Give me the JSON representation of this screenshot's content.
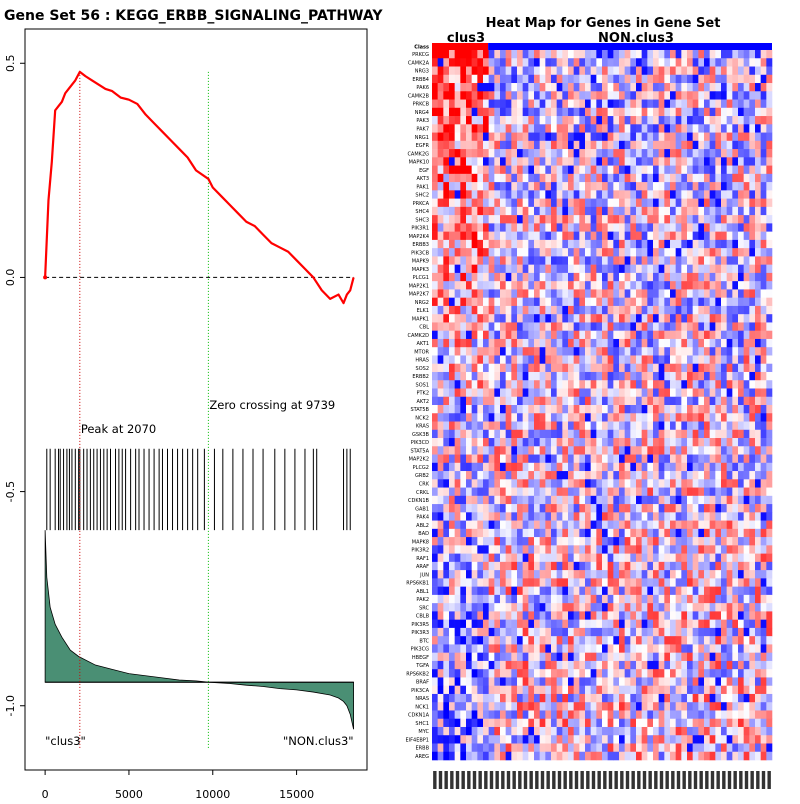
{
  "chart_data": [
    {
      "type": "line",
      "title": "Gene Set  56 : KEGG_ERBB_SIGNALING_PATHWAY",
      "xlabel": "",
      "ylabel": "",
      "xlim": [
        -1200,
        19200
      ],
      "ylim": [
        -1.15,
        0.58
      ],
      "x_ticks": [
        0,
        5000,
        10000,
        15000
      ],
      "x_tick_labels": [
        "0",
        "5000",
        "10000",
        "15000"
      ],
      "y_ticks": [
        0.5,
        0.0,
        -0.5,
        -1.0
      ],
      "y_tick_labels": [
        "0.5",
        "0.0",
        "-0.5",
        "-1.0"
      ],
      "series": [
        {
          "role": "running-enrichment-score",
          "color": "#ff0000",
          "x": [
            0,
            200,
            400,
            600,
            800,
            1000,
            1200,
            1400,
            1600,
            1800,
            2070,
            2400,
            2800,
            3200,
            3600,
            4000,
            4500,
            5000,
            5500,
            6000,
            6500,
            7000,
            7500,
            8000,
            8500,
            9000,
            9739,
            10000,
            10500,
            11000,
            11500,
            12000,
            12500,
            13000,
            13500,
            14000,
            14500,
            15000,
            15500,
            16000,
            16500,
            17000,
            17500,
            17800,
            18000,
            18200,
            18400
          ],
          "y": [
            0.0,
            0.18,
            0.27,
            0.39,
            0.4,
            0.41,
            0.43,
            0.44,
            0.45,
            0.46,
            0.48,
            0.47,
            0.46,
            0.45,
            0.44,
            0.435,
            0.42,
            0.415,
            0.405,
            0.38,
            0.36,
            0.34,
            0.32,
            0.3,
            0.28,
            0.25,
            0.23,
            0.21,
            0.19,
            0.17,
            0.15,
            0.13,
            0.12,
            0.1,
            0.08,
            0.07,
            0.06,
            0.04,
            0.02,
            0.0,
            -0.03,
            -0.05,
            -0.04,
            -0.06,
            -0.04,
            -0.03,
            0.0
          ]
        }
      ],
      "zero_line": 0.0,
      "peak": {
        "x": 2070,
        "label": "Peak at 2070",
        "line_color": "#cc0000"
      },
      "zero_crossing": {
        "x": 9739,
        "label": "Zero crossing at 9739",
        "line_color": "#00bb00"
      },
      "hits": {
        "x": [
          100,
          300,
          600,
          800,
          900,
          1100,
          1300,
          1450,
          1600,
          1800,
          2000,
          2070,
          2300,
          2500,
          2700,
          2900,
          3100,
          3300,
          3500,
          3700,
          3900,
          4200,
          4400,
          4600,
          4800,
          5100,
          5400,
          5600,
          5900,
          6200,
          6500,
          6800,
          7000,
          7300,
          7600,
          7900,
          8200,
          8500,
          8800,
          9100,
          9500,
          10100,
          10600,
          11200,
          11800,
          12400,
          13000,
          13700,
          14300,
          14900,
          15500,
          16000,
          16200,
          17800,
          18000,
          18200
        ],
        "y_range": [
          -0.4,
          -0.59
        ]
      },
      "ranked_metric": {
        "fill_color": "#4a8f74",
        "baseline": -0.945,
        "x": [
          0,
          100,
          300,
          600,
          1000,
          1500,
          2000,
          3000,
          4000,
          5000,
          6000,
          7000,
          8000,
          9000,
          9739,
          11000,
          12000,
          13000,
          14000,
          15000,
          16000,
          17000,
          17500,
          17800,
          18000,
          18200,
          18400
        ],
        "y": [
          -0.59,
          -0.7,
          -0.77,
          -0.81,
          -0.84,
          -0.87,
          -0.885,
          -0.905,
          -0.915,
          -0.925,
          -0.93,
          -0.935,
          -0.94,
          -0.942,
          -0.945,
          -0.948,
          -0.952,
          -0.955,
          -0.96,
          -0.963,
          -0.968,
          -0.975,
          -0.982,
          -0.99,
          -1.0,
          -1.02,
          -1.055
        ]
      },
      "group_labels": {
        "left": "\"clus3\"",
        "right": "\"NON.clus3\""
      }
    },
    {
      "type": "heatmap",
      "title": "Heat Map for Genes in Gene Set",
      "column_groups": [
        {
          "label": "clus3",
          "color": "#ff0000",
          "fraction": 0.165
        },
        {
          "label": "NON.clus3",
          "color": "#0000ff",
          "fraction": 0.835
        }
      ],
      "color_scale": {
        "low": "#0000ff",
        "mid": "#ffffff",
        "high": "#ff0000"
      },
      "row_header": "Class",
      "rows": [
        "PRKCG",
        "CAMK2A",
        "NRG3",
        "ERBB4",
        "PAK6",
        "CAMK2B",
        "PRKCB",
        "NRG4",
        "PAK3",
        "PAK7",
        "NRG1",
        "EGFR",
        "CAMK2G",
        "MAPK10",
        "EGF",
        "AKT3",
        "PAK1",
        "SHC2",
        "PRKCA",
        "SHC4",
        "SHC3",
        "PIK3R1",
        "MAP2K4",
        "ERBB3",
        "PIK3CB",
        "MAPK9",
        "MAPK3",
        "PLCG1",
        "MAP2K1",
        "MAP2K7",
        "NRG2",
        "ELK1",
        "MAPK1",
        "CBL",
        "CAMK2D",
        "AKT1",
        "MTOR",
        "HRAS",
        "SOS2",
        "ERBB2",
        "SOS1",
        "PTK2",
        "AKT2",
        "STAT5B",
        "NCK2",
        "KRAS",
        "GSK3B",
        "PIK3CD",
        "STAT5A",
        "MAP2K2",
        "PLCG2",
        "GRB2",
        "CRK",
        "CRKL",
        "CDKN1B",
        "GAB1",
        "PAK4",
        "ABL2",
        "BAD",
        "MAPK8",
        "PIK3R2",
        "RAF1",
        "ARAF",
        "JUN",
        "RPS6KB1",
        "ABL1",
        "PAK2",
        "SRC",
        "CBLB",
        "PIK3R5",
        "PIK3R3",
        "BTC",
        "PIK3CG",
        "HBEGF",
        "TGFA",
        "RPS6KB2",
        "BRAF",
        "PIK3CA",
        "NRAS",
        "NCK1",
        "CDKN1A",
        "SHC1",
        "MYC",
        "EIF4EBP1",
        "ERBB",
        "AREG"
      ],
      "row_tint": [
        0.9,
        0.8,
        0.7,
        0.75,
        0.7,
        0.8,
        0.6,
        0.65,
        0.6,
        0.6,
        0.55,
        0.45,
        0.4,
        0.4,
        0.4,
        0.4,
        0.45,
        0.35,
        0.35,
        0.35,
        0.3,
        0.3,
        0.3,
        0.35,
        0.3,
        0.3,
        0.3,
        0.25,
        0.25,
        0.25,
        0.2,
        0.2,
        0.2,
        0.15,
        0.15,
        0.15,
        0.1,
        0.1,
        0.1,
        0.1,
        0.05,
        0.05,
        0.05,
        0.0,
        0.0,
        0.0,
        0.0,
        -0.05,
        -0.05,
        -0.05,
        -0.05,
        -0.1,
        -0.1,
        -0.1,
        -0.1,
        -0.1,
        -0.15,
        -0.15,
        -0.15,
        -0.15,
        -0.2,
        -0.2,
        -0.2,
        -0.2,
        -0.25,
        -0.25,
        -0.25,
        -0.25,
        -0.3,
        -0.3,
        -0.3,
        -0.3,
        -0.3,
        -0.35,
        -0.35,
        -0.35,
        -0.35,
        -0.4,
        -0.4,
        -0.4,
        -0.4,
        -0.45,
        -0.45,
        -0.45,
        -0.45,
        -0.5
      ],
      "n_columns": 60
    }
  ]
}
